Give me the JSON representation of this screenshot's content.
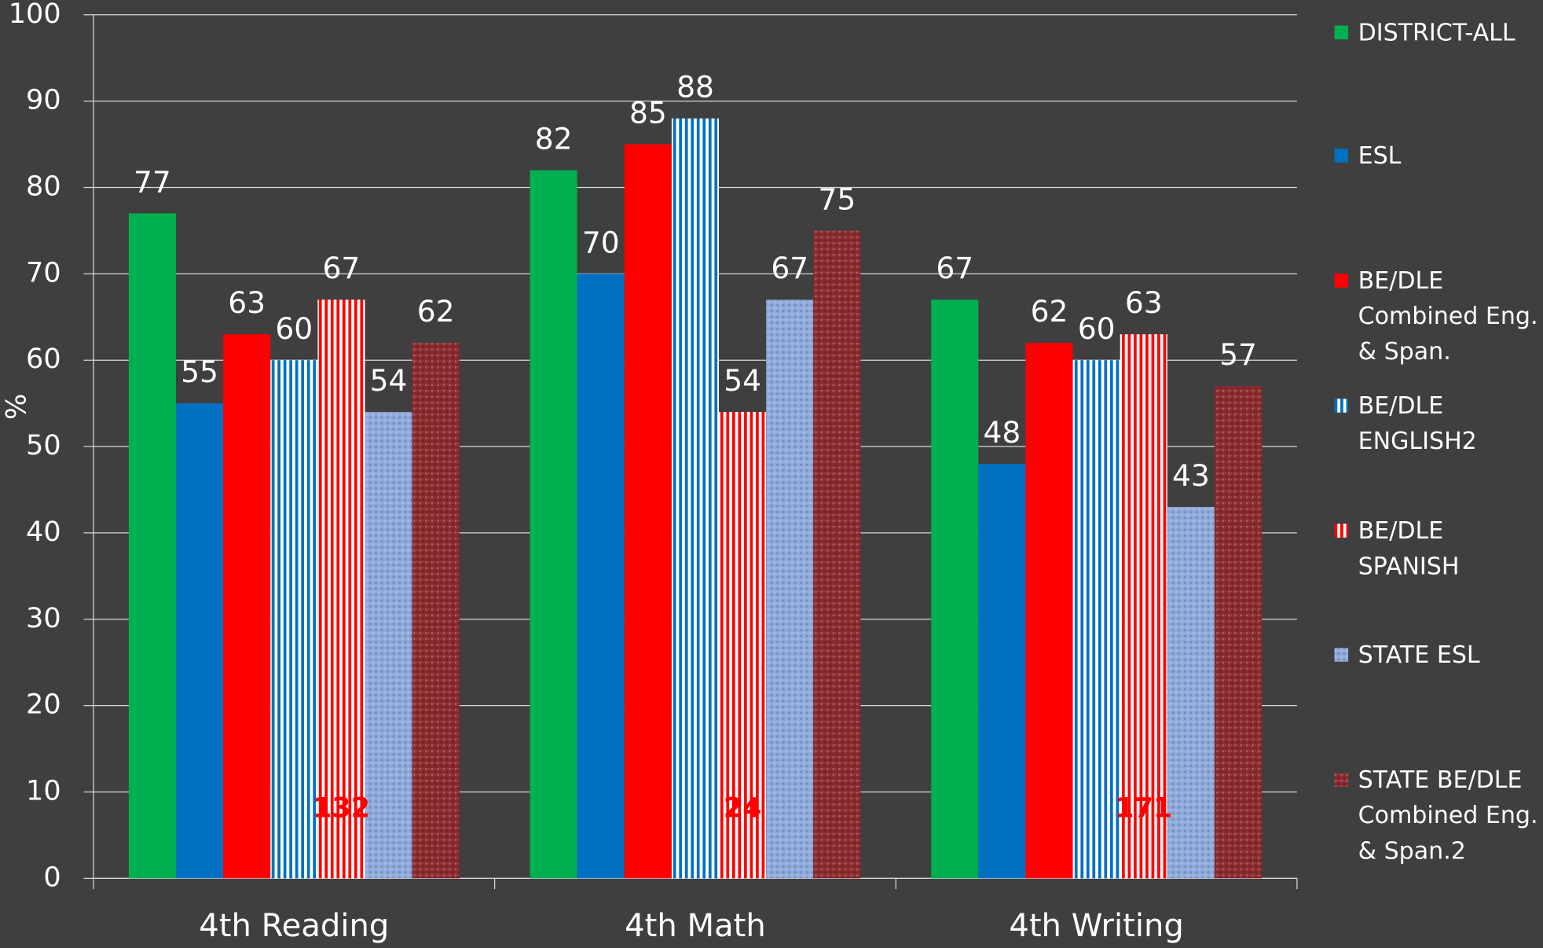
{
  "chart_data": {
    "type": "bar",
    "y_label": "%",
    "categories": [
      "4th Reading",
      "4th Math",
      "4th Writing"
    ],
    "series": [
      {
        "name": "DISTRICT-ALL",
        "color": "#00b050",
        "pattern": "solid",
        "values": [
          77,
          82,
          67
        ]
      },
      {
        "name": "ESL",
        "color": "#0070c0",
        "pattern": "solid",
        "values": [
          55,
          70,
          48
        ]
      },
      {
        "name": "BE/DLE Combined Eng. & Span.",
        "color": "#ff0000",
        "pattern": "solid",
        "values": [
          63,
          85,
          62
        ]
      },
      {
        "name": "BE/DLE ENGLISH2",
        "color": "#0070c0",
        "pattern": "stripes",
        "values": [
          60,
          88,
          60
        ]
      },
      {
        "name": "BE/DLE SPANISH",
        "color": "#ff0000",
        "pattern": "stripes",
        "values": [
          67,
          54,
          63
        ]
      },
      {
        "name": "STATE ESL",
        "color": "#8ea9db",
        "pattern": "texture",
        "values": [
          54,
          67,
          43
        ]
      },
      {
        "name": "STATE BE/DLE Combined Eng. & Span.2",
        "color": "#8b2a2e",
        "pattern": "texture",
        "values": [
          62,
          75,
          57
        ]
      }
    ],
    "annotations": [
      "132",
      "24",
      "171"
    ],
    "ylim": [
      0,
      100
    ],
    "yticks": [
      0,
      10,
      20,
      30,
      40,
      50,
      60,
      70,
      80,
      90,
      100
    ],
    "grid": true,
    "legend": "right"
  }
}
